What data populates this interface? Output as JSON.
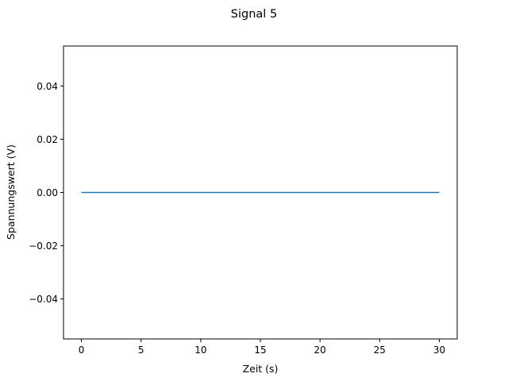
{
  "chart_data": {
    "type": "line",
    "title": "Signal 5",
    "xlabel": "Zeit (s)",
    "ylabel": "Spannungswert (V)",
    "xlim": [
      -1.5,
      31.5
    ],
    "ylim": [
      -0.055,
      0.055
    ],
    "xticks": [
      0,
      5,
      10,
      15,
      20,
      25,
      30
    ],
    "xtick_labels": [
      "0",
      "5",
      "10",
      "15",
      "20",
      "25",
      "30"
    ],
    "yticks": [
      -0.04,
      -0.02,
      0.0,
      0.02,
      0.04
    ],
    "ytick_labels": [
      "−0.04",
      "−0.02",
      "0.00",
      "0.02",
      "0.04"
    ],
    "grid": false,
    "series": [
      {
        "color": "#1f77b4",
        "x": [
          0,
          30
        ],
        "y": [
          0.0,
          0.0
        ]
      }
    ]
  }
}
